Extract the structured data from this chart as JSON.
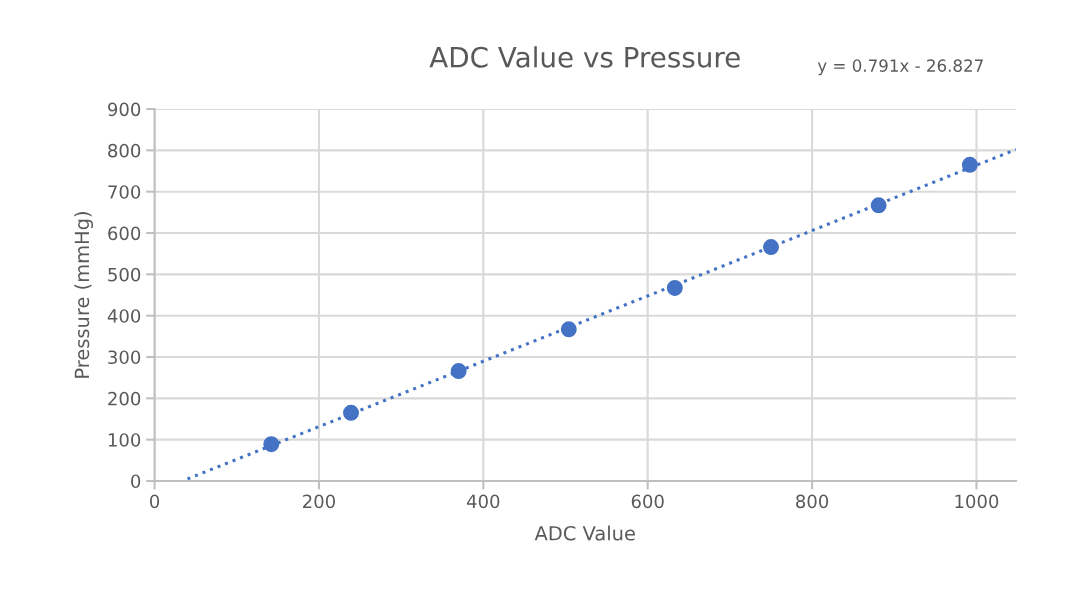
{
  "chart_data": {
    "type": "scatter",
    "title": "ADC Value vs Pressure",
    "xlabel": "ADC Value",
    "ylabel": "Pressure (mmHg)",
    "annotations": [
      "y = 0.791x - 26.827"
    ],
    "series": [
      {
        "color": "#4472c4",
        "marker": "circle",
        "x": [
          142,
          239,
          370,
          504,
          633,
          750,
          881,
          992
        ],
        "values": [
          89,
          165,
          266,
          367,
          467,
          566,
          667,
          765
        ]
      },
      {
        "type": "line",
        "color": "#4472c4",
        "line_style": "dotted",
        "marker": "none",
        "x": [
          40,
          1048
        ],
        "values": [
          5,
          802
        ]
      }
    ],
    "xlim": [
      0,
      1048
    ],
    "xticks": [
      0,
      200,
      400,
      600,
      800,
      1000
    ],
    "ylim": [
      0,
      900
    ],
    "yticks": [
      0,
      100,
      200,
      300,
      400,
      500,
      600,
      700,
      800,
      900
    ],
    "grid": true,
    "legend": false
  }
}
